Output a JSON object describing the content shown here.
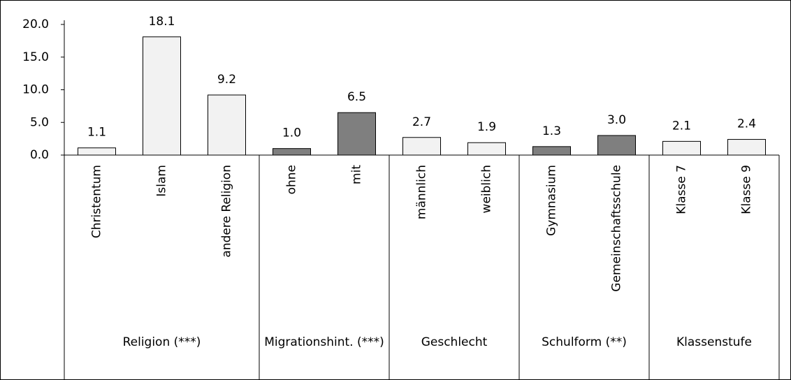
{
  "chart_data": {
    "type": "bar",
    "ylim": [
      0,
      20
    ],
    "yticks": [
      {
        "value": 0,
        "label": "0.0"
      },
      {
        "value": 5,
        "label": "5.0"
      },
      {
        "value": 10,
        "label": "10.0"
      },
      {
        "value": 15,
        "label": "15.0"
      },
      {
        "value": 20,
        "label": "20.0"
      }
    ],
    "groups": [
      {
        "label": "Religion (***)",
        "color": "#f2f2f2",
        "categories": [
          "Christentum",
          "Islam",
          "andere Religion"
        ],
        "values": [
          1.1,
          18.1,
          9.2
        ],
        "value_labels": [
          "1.1",
          "18.1",
          "9.2"
        ]
      },
      {
        "label": "Migrationshint. (***)",
        "color": "#7f7f7f",
        "categories": [
          "ohne",
          "mit"
        ],
        "values": [
          1.0,
          6.5
        ],
        "value_labels": [
          "1.0",
          "6.5"
        ]
      },
      {
        "label": "Geschlecht",
        "color": "#f2f2f2",
        "categories": [
          "männlich",
          "weiblich"
        ],
        "values": [
          2.7,
          1.9
        ],
        "value_labels": [
          "2.7",
          "1.9"
        ]
      },
      {
        "label": "Schulform (**)",
        "color": "#7f7f7f",
        "categories": [
          "Gymnasium",
          "Gemeinschaftsschule"
        ],
        "values": [
          1.3,
          3.0
        ],
        "value_labels": [
          "1.3",
          "3.0"
        ]
      },
      {
        "label": "Klassenstufe",
        "color": "#f2f2f2",
        "categories": [
          "Klasse 7",
          "Klasse 9"
        ],
        "values": [
          2.1,
          2.4
        ],
        "value_labels": [
          "2.1",
          "2.4"
        ]
      }
    ]
  }
}
